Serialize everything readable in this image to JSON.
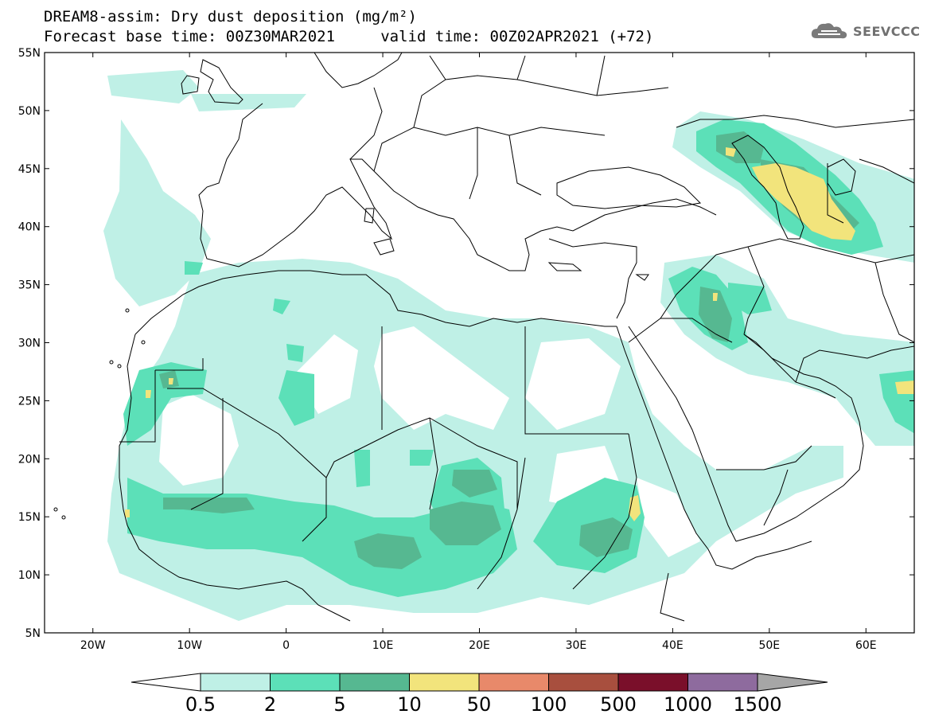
{
  "header": {
    "title_line1": "DREAM8-assim: Dry dust deposition (mg/m²)",
    "title_line2": "Forecast base time: 00Z30MAR2021     valid time: 00Z02APR2021 (+72)",
    "logo_text": "SEEVCCC"
  },
  "map": {
    "lat_labels": [
      "55N",
      "50N",
      "45N",
      "40N",
      "35N",
      "30N",
      "25N",
      "20N",
      "15N",
      "10N",
      "5N"
    ],
    "lon_labels": [
      "20W",
      "10W",
      "0",
      "10E",
      "20E",
      "30E",
      "40E",
      "50E",
      "60E"
    ],
    "lat_values": [
      55,
      50,
      45,
      40,
      35,
      30,
      25,
      20,
      15,
      10,
      5
    ],
    "lon_values": [
      -20,
      -10,
      0,
      10,
      20,
      30,
      40,
      50,
      60
    ],
    "extent": {
      "lon_min": -25,
      "lon_max": 65,
      "lat_min": 5,
      "lat_max": 55
    },
    "land_line_color": "#000000"
  },
  "colorbar": {
    "labels": [
      "0.5",
      "2",
      "5",
      "10",
      "50",
      "100",
      "500",
      "1000",
      "1500"
    ],
    "colors": [
      "#bff0e6",
      "#5ce0b8",
      "#56b891",
      "#f2e47c",
      "#e8896a",
      "#a84f3e",
      "#7a0f2a",
      "#8e6b9e"
    ],
    "under_color": "#ffffff",
    "over_color": "#a6a6a6"
  }
}
